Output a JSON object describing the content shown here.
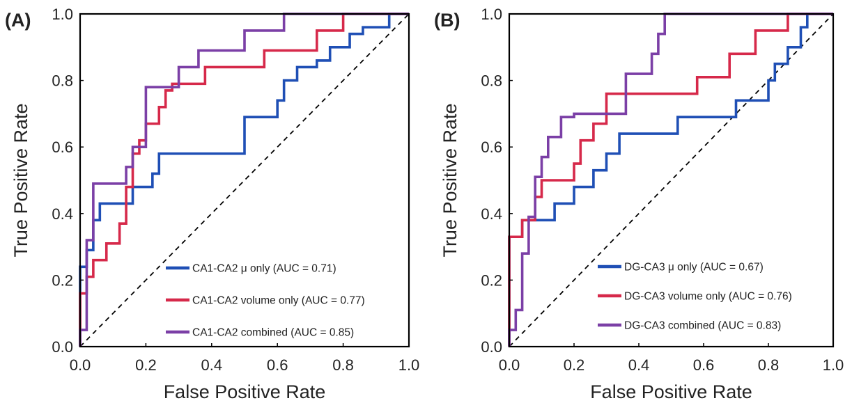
{
  "chart_data": [
    {
      "type": "line",
      "panel_label": "(A)",
      "xlabel": "False Positive Rate",
      "ylabel": "True Positive Rate",
      "xlim": [
        0,
        1
      ],
      "ylim": [
        0,
        1
      ],
      "xticks": [
        "0.0",
        "0.2",
        "0.4",
        "0.6",
        "0.8",
        "1.0"
      ],
      "yticks": [
        "0.0",
        "0.2",
        "0.4",
        "0.6",
        "0.8",
        "1.0"
      ],
      "grid": false,
      "legend_position": "bottom-right",
      "diagonal_reference": true,
      "series": [
        {
          "name": "CA1-CA2 μ only (AUC = 0.71)",
          "color": "#1f4fb5",
          "x": [
            0,
            0,
            0.02,
            0.02,
            0.04,
            0.04,
            0.06,
            0.06,
            0.16,
            0.16,
            0.22,
            0.22,
            0.24,
            0.24,
            0.5,
            0.5,
            0.6,
            0.6,
            0.62,
            0.62,
            0.66,
            0.66,
            0.72,
            0.72,
            0.76,
            0.76,
            0.82,
            0.82,
            0.86,
            0.86,
            0.94,
            0.94,
            1.0
          ],
          "y": [
            0,
            0.24,
            0.24,
            0.29,
            0.29,
            0.38,
            0.38,
            0.43,
            0.43,
            0.48,
            0.48,
            0.52,
            0.52,
            0.58,
            0.58,
            0.69,
            0.69,
            0.74,
            0.74,
            0.8,
            0.8,
            0.84,
            0.84,
            0.86,
            0.86,
            0.9,
            0.9,
            0.94,
            0.94,
            0.96,
            0.96,
            1.0,
            1.0
          ]
        },
        {
          "name": "CA1-CA2 volume only (AUC = 0.77)",
          "color": "#d6294a",
          "x": [
            0,
            0,
            0.02,
            0.02,
            0.04,
            0.04,
            0.08,
            0.08,
            0.12,
            0.12,
            0.14,
            0.14,
            0.16,
            0.16,
            0.18,
            0.18,
            0.2,
            0.2,
            0.24,
            0.24,
            0.26,
            0.26,
            0.28,
            0.28,
            0.32,
            0.32,
            0.38,
            0.38,
            0.42,
            0.42,
            0.56,
            0.56,
            0.72,
            0.72,
            0.8,
            0.8,
            0.86,
            0.86,
            1.0
          ],
          "y": [
            0,
            0.16,
            0.16,
            0.21,
            0.21,
            0.26,
            0.26,
            0.31,
            0.31,
            0.37,
            0.37,
            0.48,
            0.48,
            0.58,
            0.58,
            0.62,
            0.62,
            0.67,
            0.67,
            0.72,
            0.72,
            0.77,
            0.77,
            0.79,
            0.79,
            0.79,
            0.79,
            0.84,
            0.84,
            0.84,
            0.84,
            0.89,
            0.89,
            0.95,
            0.95,
            1.0,
            1.0,
            1.0,
            1.0
          ]
        },
        {
          "name": "CA1-CA2 combined (AUC = 0.85)",
          "color": "#7b3fa6",
          "x": [
            0,
            0,
            0.02,
            0.02,
            0.04,
            0.04,
            0.14,
            0.14,
            0.16,
            0.16,
            0.2,
            0.2,
            0.3,
            0.3,
            0.36,
            0.36,
            0.4,
            0.4,
            0.5,
            0.5,
            0.56,
            0.56,
            0.62,
            0.62,
            1.0
          ],
          "y": [
            0,
            0.05,
            0.05,
            0.32,
            0.32,
            0.49,
            0.49,
            0.54,
            0.54,
            0.6,
            0.6,
            0.78,
            0.78,
            0.84,
            0.84,
            0.89,
            0.89,
            0.89,
            0.89,
            0.95,
            0.95,
            0.95,
            0.95,
            1.0,
            1.0
          ]
        }
      ]
    },
    {
      "type": "line",
      "panel_label": "(B)",
      "xlabel": "False Positive Rate",
      "ylabel": "True Positive Rate",
      "xlim": [
        0,
        1
      ],
      "ylim": [
        0,
        1
      ],
      "xticks": [
        "0.0",
        "0.2",
        "0.4",
        "0.6",
        "0.8",
        "1.0"
      ],
      "yticks": [
        "0.0",
        "0.2",
        "0.4",
        "0.6",
        "0.8",
        "1.0"
      ],
      "grid": false,
      "legend_position": "bottom-right",
      "diagonal_reference": true,
      "series": [
        {
          "name": "DG-CA3 μ only (AUC = 0.67)",
          "color": "#1f4fb5",
          "x": [
            0,
            0,
            0.04,
            0.04,
            0.06,
            0.06,
            0.14,
            0.14,
            0.2,
            0.2,
            0.26,
            0.26,
            0.3,
            0.3,
            0.34,
            0.34,
            0.4,
            0.4,
            0.52,
            0.52,
            0.7,
            0.7,
            0.8,
            0.8,
            0.82,
            0.82,
            0.86,
            0.86,
            0.9,
            0.9,
            0.92,
            0.92,
            1.0
          ],
          "y": [
            0,
            0.33,
            0.33,
            0.38,
            0.38,
            0.38,
            0.38,
            0.43,
            0.43,
            0.48,
            0.48,
            0.53,
            0.53,
            0.58,
            0.58,
            0.64,
            0.64,
            0.64,
            0.64,
            0.69,
            0.69,
            0.74,
            0.74,
            0.8,
            0.8,
            0.85,
            0.85,
            0.9,
            0.9,
            0.96,
            0.96,
            1.0,
            1.0
          ]
        },
        {
          "name": "DG-CA3 volume only (AUC = 0.76)",
          "color": "#d6294a",
          "x": [
            0,
            0,
            0.04,
            0.04,
            0.08,
            0.08,
            0.1,
            0.1,
            0.2,
            0.2,
            0.22,
            0.22,
            0.26,
            0.26,
            0.3,
            0.3,
            0.58,
            0.58,
            0.68,
            0.68,
            0.76,
            0.76,
            0.86,
            0.86,
            1.0
          ],
          "y": [
            0,
            0.33,
            0.33,
            0.38,
            0.38,
            0.45,
            0.45,
            0.5,
            0.5,
            0.55,
            0.55,
            0.62,
            0.62,
            0.67,
            0.67,
            0.76,
            0.76,
            0.81,
            0.81,
            0.88,
            0.88,
            0.95,
            0.95,
            1.0,
            1.0
          ]
        },
        {
          "name": "DG-CA3 combined (AUC = 0.83)",
          "color": "#7b3fa6",
          "x": [
            0,
            0,
            0.02,
            0.02,
            0.04,
            0.04,
            0.06,
            0.06,
            0.08,
            0.08,
            0.1,
            0.1,
            0.12,
            0.12,
            0.16,
            0.16,
            0.2,
            0.2,
            0.36,
            0.36,
            0.44,
            0.44,
            0.46,
            0.46,
            0.48,
            0.48,
            0.52,
            0.52,
            1.0
          ],
          "y": [
            0,
            0.05,
            0.05,
            0.11,
            0.11,
            0.28,
            0.28,
            0.39,
            0.39,
            0.51,
            0.51,
            0.57,
            0.57,
            0.63,
            0.63,
            0.69,
            0.69,
            0.7,
            0.7,
            0.82,
            0.82,
            0.88,
            0.88,
            0.94,
            0.94,
            1.0,
            1.0,
            1.0,
            1.0
          ]
        }
      ]
    }
  ]
}
